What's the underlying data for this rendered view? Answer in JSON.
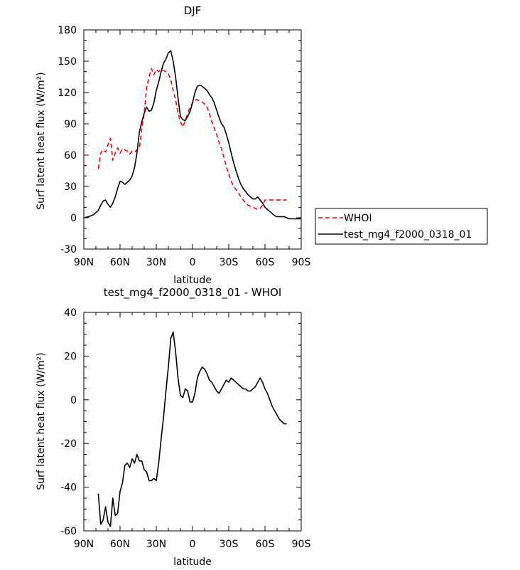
{
  "chart_data": [
    {
      "type": "line",
      "title": "DJF",
      "xlabel": "latitude",
      "ylabel": "Surf latent heat flux (W/m²)",
      "xlim": [
        90,
        -90
      ],
      "ylim": [
        -30,
        180
      ],
      "xticks": [
        "90N",
        "60N",
        "30N",
        "0",
        "30S",
        "60S",
        "90S"
      ],
      "yticks": [
        "-30",
        "0",
        "30",
        "60",
        "90",
        "120",
        "150",
        "180"
      ],
      "legend_position": "right",
      "series": [
        {
          "name": "WHOI",
          "color": "#ff0000",
          "dash": "dashed",
          "x": [
            78,
            76,
            74,
            72,
            70,
            68,
            66,
            64,
            62,
            60,
            58,
            56,
            54,
            52,
            50,
            48,
            46,
            44,
            42,
            40,
            38,
            36,
            34,
            32,
            30,
            28,
            26,
            24,
            22,
            20,
            18,
            16,
            14,
            12,
            10,
            8,
            6,
            4,
            2,
            0,
            -2,
            -4,
            -6,
            -8,
            -10,
            -12,
            -14,
            -16,
            -18,
            -20,
            -22,
            -24,
            -26,
            -28,
            -30,
            -32,
            -34,
            -36,
            -38,
            -40,
            -42,
            -44,
            -46,
            -48,
            -50,
            -52,
            -54,
            -56,
            -58,
            -60,
            -62,
            -64,
            -66,
            -68,
            -70,
            -72,
            -74,
            -76,
            -78
          ],
          "values": [
            47,
            62,
            65,
            63,
            70,
            76,
            55,
            62,
            67,
            62,
            66,
            65,
            64,
            61,
            64,
            63,
            65,
            67,
            85,
            100,
            125,
            135,
            143,
            137,
            142,
            140,
            142,
            141,
            140,
            138,
            132,
            122,
            113,
            100,
            92,
            87,
            93,
            100,
            106,
            110,
            113,
            113,
            112,
            111,
            109,
            106,
            100,
            92,
            86,
            80,
            72,
            66,
            58,
            49,
            42,
            35,
            30,
            27,
            24,
            20,
            17,
            14,
            12,
            11,
            10,
            9,
            8,
            9,
            12,
            17,
            17,
            17,
            17,
            17,
            17,
            17,
            17,
            17,
            17
          ]
        },
        {
          "name": "test_mg4_f2000_0318_01",
          "color": "#000000",
          "dash": "solid",
          "x": [
            90,
            88,
            86,
            84,
            82,
            80,
            78,
            76,
            74,
            72,
            70,
            68,
            66,
            64,
            62,
            60,
            58,
            56,
            54,
            52,
            50,
            48,
            46,
            44,
            42,
            40,
            38,
            36,
            34,
            32,
            30,
            28,
            26,
            24,
            22,
            20,
            18,
            16,
            14,
            12,
            10,
            8,
            6,
            4,
            2,
            0,
            -2,
            -4,
            -6,
            -8,
            -10,
            -12,
            -14,
            -16,
            -18,
            -20,
            -22,
            -24,
            -26,
            -28,
            -30,
            -32,
            -34,
            -36,
            -38,
            -40,
            -42,
            -44,
            -46,
            -48,
            -50,
            -52,
            -54,
            -56,
            -58,
            -60,
            -62,
            -64,
            -66,
            -68,
            -70,
            -72,
            -74,
            -76,
            -78,
            -80,
            -82,
            -84,
            -86,
            -88,
            -90
          ],
          "values": [
            0,
            0.5,
            1,
            2,
            3,
            5,
            7,
            12,
            16,
            17,
            13,
            10,
            14,
            20,
            28,
            35,
            34,
            32,
            34,
            36,
            40,
            48,
            62,
            82,
            92,
            100,
            106,
            102,
            103,
            110,
            122,
            130,
            140,
            148,
            152,
            158,
            160,
            150,
            135,
            115,
            97,
            94,
            93,
            97,
            102,
            110,
            120,
            126,
            127,
            126,
            124,
            122,
            118,
            115,
            110,
            103,
            96,
            90,
            87,
            80,
            72,
            62,
            53,
            45,
            38,
            32,
            28,
            25,
            22,
            20,
            18,
            18,
            20,
            17,
            14,
            10,
            8,
            6,
            4,
            2,
            1,
            1,
            1,
            1,
            0,
            -1,
            -1,
            -1,
            -1,
            -1,
            -1
          ]
        }
      ]
    },
    {
      "type": "line",
      "title": "test_mg4_f2000_0318_01 - WHOI",
      "xlabel": "latitude",
      "ylabel": "Surf latent heat flux (W/m²)",
      "xlim": [
        90,
        -90
      ],
      "ylim": [
        -60,
        40
      ],
      "xticks": [
        "90N",
        "60N",
        "30N",
        "0",
        "30S",
        "60S",
        "90S"
      ],
      "yticks": [
        "-60",
        "-40",
        "-20",
        "0",
        "20",
        "40"
      ],
      "series": [
        {
          "name": "",
          "color": "#000000",
          "dash": "solid",
          "x": [
            78,
            76,
            74,
            72,
            70,
            68,
            66,
            64,
            62,
            60,
            58,
            56,
            54,
            52,
            50,
            48,
            46,
            44,
            42,
            40,
            38,
            36,
            34,
            32,
            30,
            28,
            26,
            24,
            22,
            20,
            18,
            16,
            14,
            12,
            10,
            8,
            6,
            4,
            2,
            0,
            -2,
            -4,
            -6,
            -8,
            -10,
            -12,
            -14,
            -16,
            -18,
            -20,
            -22,
            -24,
            -26,
            -28,
            -30,
            -32,
            -34,
            -36,
            -38,
            -40,
            -42,
            -44,
            -46,
            -48,
            -50,
            -52,
            -54,
            -56,
            -58,
            -60,
            -62,
            -64,
            -66,
            -68,
            -70,
            -72,
            -74,
            -76,
            -78
          ],
          "values": [
            -43,
            -57,
            -55,
            -49,
            -56,
            -58,
            -45,
            -53,
            -52,
            -42,
            -38,
            -30,
            -29,
            -31,
            -27,
            -29,
            -25,
            -28,
            -28,
            -32,
            -33,
            -37,
            -37,
            -36,
            -37,
            -29,
            -18,
            -8,
            4,
            15,
            28,
            31,
            22,
            10,
            2,
            1,
            5,
            4,
            -1,
            -1,
            3,
            10,
            13,
            15,
            14,
            12,
            9,
            8,
            6,
            4,
            3,
            5,
            7,
            9,
            8,
            10,
            9,
            8,
            7,
            6,
            5,
            5,
            4,
            4,
            5,
            6,
            8,
            10,
            8,
            5,
            3,
            0,
            -3,
            -5,
            -7,
            -9,
            -10,
            -11,
            -11
          ]
        }
      ]
    }
  ]
}
